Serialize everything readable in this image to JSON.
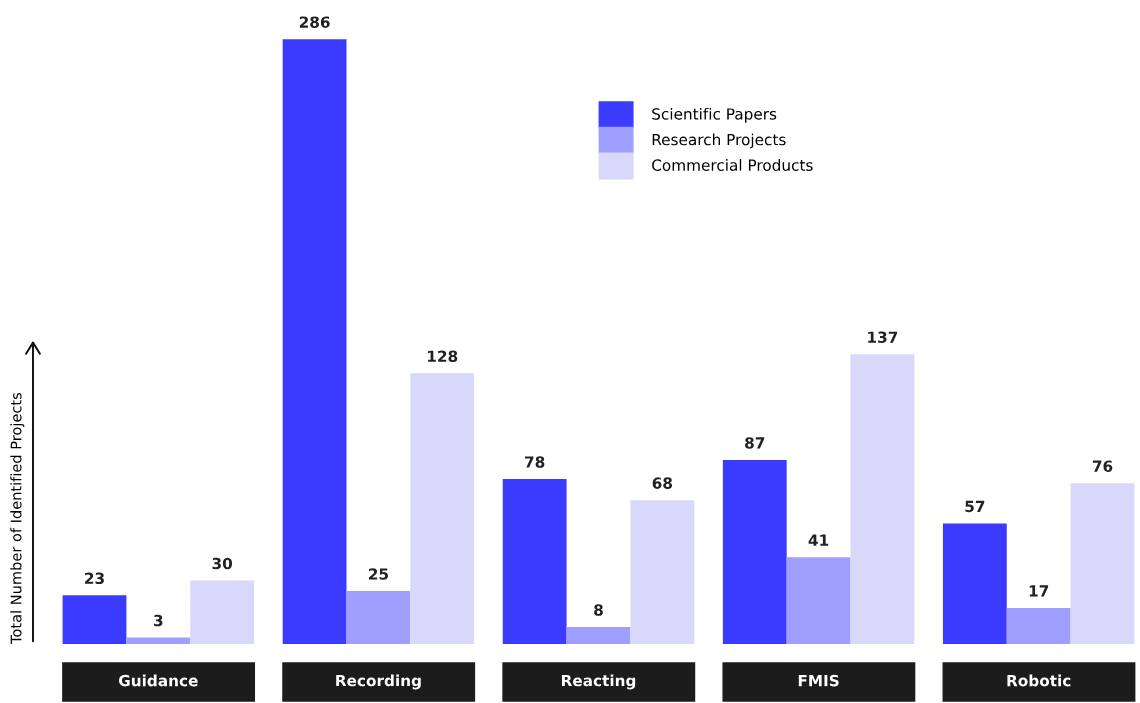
{
  "chart_data": {
    "type": "bar",
    "ylabel": "Total Number of Identified Projects",
    "categories": [
      "Guidance",
      "Recording",
      "Reacting",
      "FMIS",
      "Robotic"
    ],
    "series": [
      {
        "name": "Scientific Papers",
        "color": "#3b3bff",
        "values": [
          23,
          286,
          78,
          87,
          57
        ]
      },
      {
        "name": "Research Projects",
        "color": "#9f9fff",
        "values": [
          3,
          25,
          8,
          41,
          17
        ]
      },
      {
        "name": "Commercial Products",
        "color": "#d8d8fb",
        "values": [
          30,
          128,
          68,
          137,
          76
        ]
      }
    ],
    "data_labels": true,
    "legend": "top"
  }
}
